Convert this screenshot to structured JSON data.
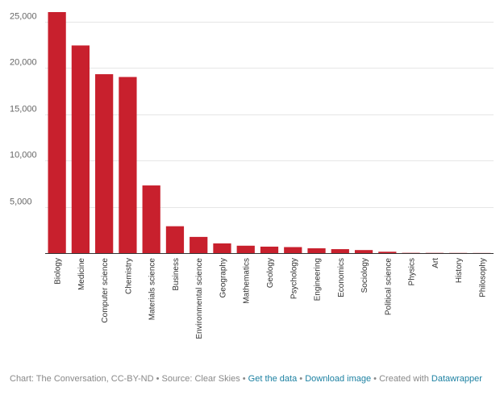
{
  "chart_data": {
    "type": "bar",
    "categories": [
      "Biology",
      "Medicine",
      "Computer science",
      "Chemistry",
      "Materials science",
      "Business",
      "Environmental science",
      "Geography",
      "Mathematics",
      "Geology",
      "Psychology",
      "Engineering",
      "Economics",
      "Sociology",
      "Political science",
      "Physics",
      "Art",
      "History",
      "Philosophy"
    ],
    "values": [
      26000,
      22400,
      19300,
      19000,
      7300,
      2900,
      1750,
      1050,
      800,
      700,
      650,
      520,
      430,
      330,
      150,
      30,
      25,
      20,
      15
    ],
    "ylim": [
      0,
      26000
    ],
    "yticks": [
      5000,
      10000,
      15000,
      20000,
      25000
    ],
    "ytick_labels": [
      "5,000",
      "10,000",
      "15,000",
      "20,000",
      "25,000"
    ],
    "bar_color": "#c8202d",
    "grid": true,
    "title": "",
    "xlabel": "",
    "ylabel": ""
  },
  "footer": {
    "chart_credit": "Chart: The Conversation, CC-BY-ND",
    "sep1": " • ",
    "source": "Source: Clear Skies",
    "sep2": " • ",
    "get_data": "Get the data",
    "sep3": " • ",
    "download": "Download image",
    "sep4": " • ",
    "created_with": "Created with ",
    "datawrapper": "Datawrapper"
  },
  "colors": {
    "link": "#1d81a2",
    "bar": "#c8202d"
  }
}
